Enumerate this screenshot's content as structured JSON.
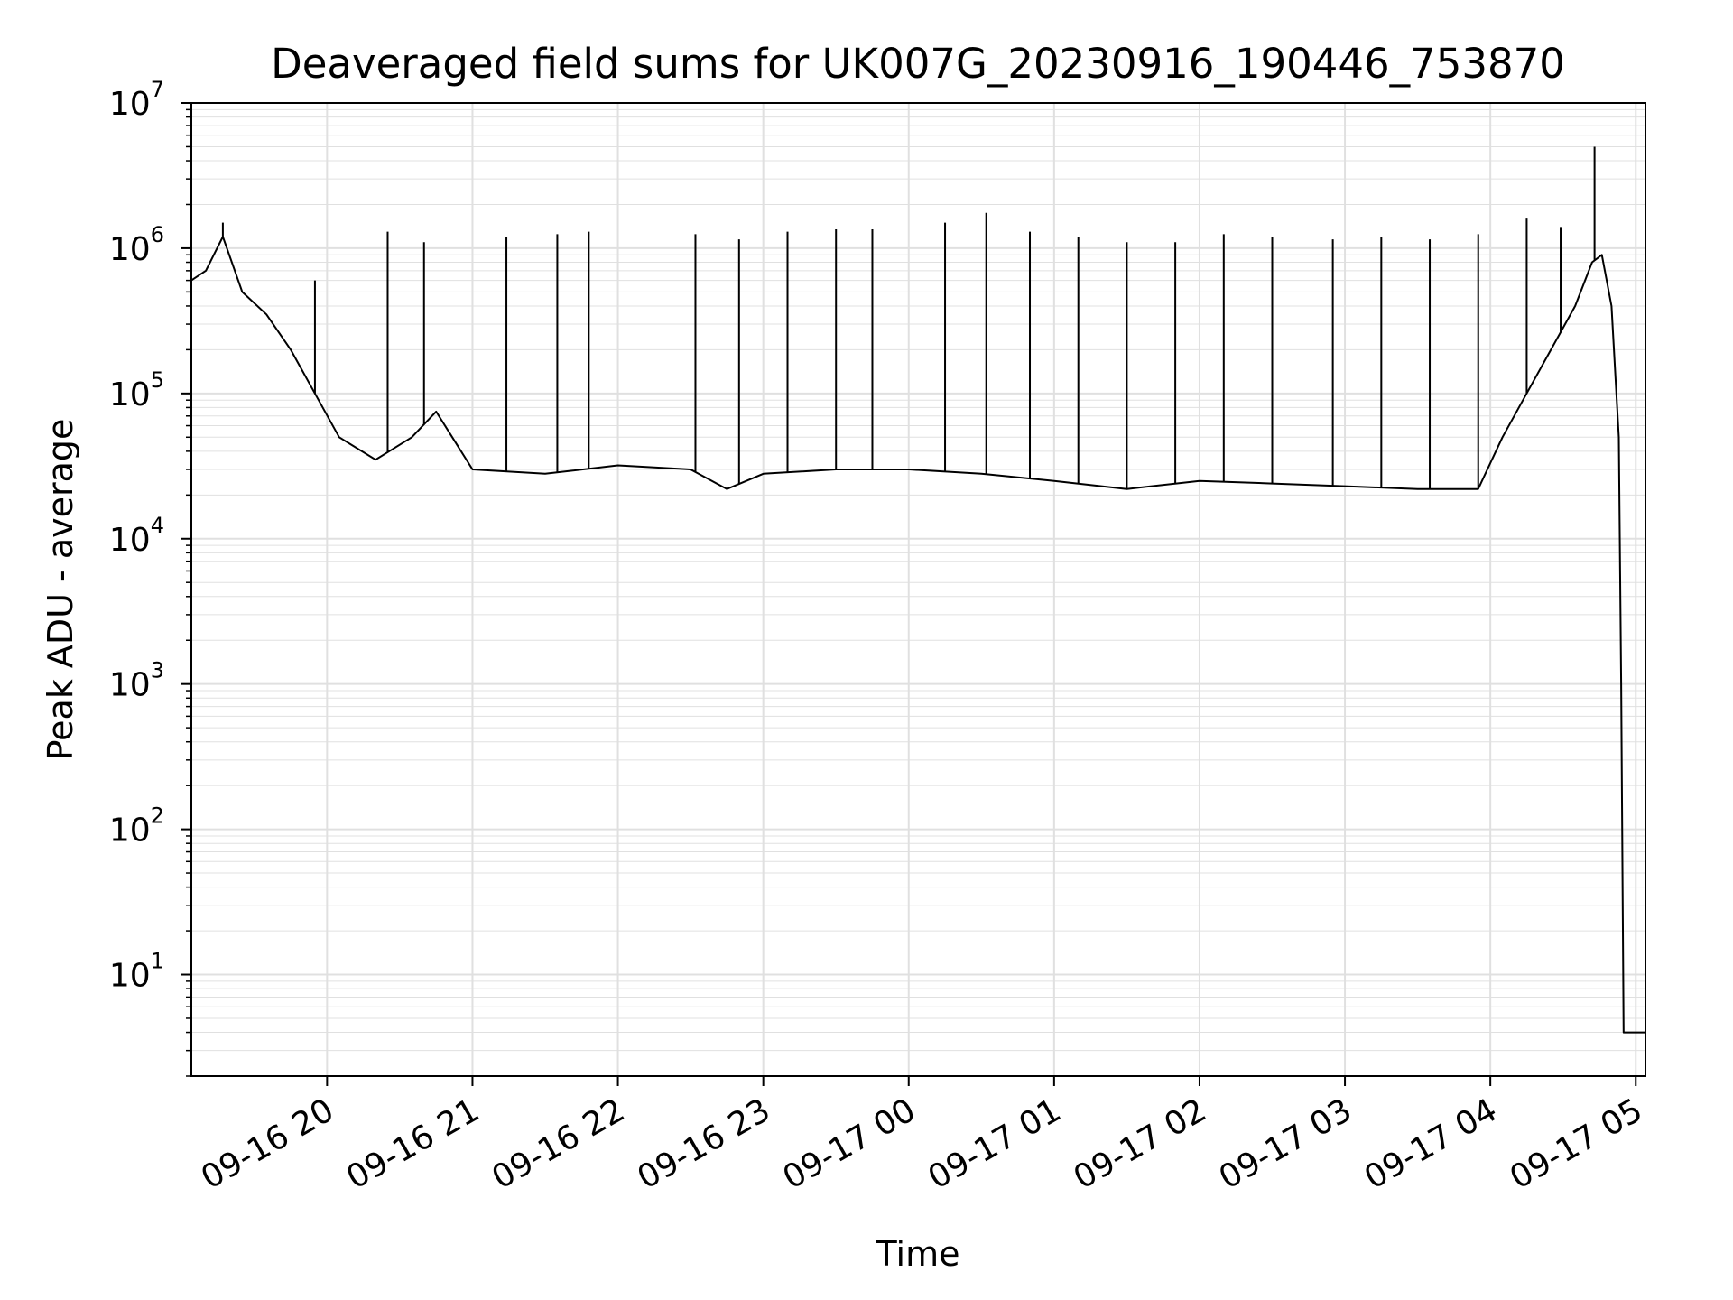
{
  "chart_data": {
    "type": "line",
    "title": "Deaveraged field sums for UK007G_20230916_190446_753870",
    "xlabel": "Time",
    "ylabel": "Peak ADU - average",
    "y_scale": "log",
    "ylim": [
      2,
      10000000
    ],
    "xlim": [
      "2023-09-16 19:04",
      "2023-09-17 05:04"
    ],
    "grid": true,
    "line_color": "#000000",
    "grid_color": "#e0e0e0",
    "x_ticks": [
      {
        "value": "2023-09-16 20:00",
        "label": "09-16 20"
      },
      {
        "value": "2023-09-16 21:00",
        "label": "09-16 21"
      },
      {
        "value": "2023-09-16 22:00",
        "label": "09-16 22"
      },
      {
        "value": "2023-09-16 23:00",
        "label": "09-16 23"
      },
      {
        "value": "2023-09-17 00:00",
        "label": "09-17 00"
      },
      {
        "value": "2023-09-17 01:00",
        "label": "09-17 01"
      },
      {
        "value": "2023-09-17 02:00",
        "label": "09-17 02"
      },
      {
        "value": "2023-09-17 03:00",
        "label": "09-17 03"
      },
      {
        "value": "2023-09-17 04:00",
        "label": "09-17 04"
      },
      {
        "value": "2023-09-17 05:00",
        "label": "09-17 05"
      }
    ],
    "y_ticks": [
      {
        "value": 10,
        "base": "10",
        "exp": "1"
      },
      {
        "value": 100,
        "base": "10",
        "exp": "2"
      },
      {
        "value": 1000,
        "base": "10",
        "exp": "3"
      },
      {
        "value": 10000,
        "base": "10",
        "exp": "4"
      },
      {
        "value": 100000,
        "base": "10",
        "exp": "5"
      },
      {
        "value": 1000000,
        "base": "10",
        "exp": "6"
      },
      {
        "value": 10000000,
        "base": "10",
        "exp": "7"
      }
    ],
    "series": [
      {
        "x": [
          "2023-09-16 19:04",
          "2023-09-16 19:10",
          "2023-09-16 19:17",
          "2023-09-16 19:25",
          "2023-09-16 19:35",
          "2023-09-16 19:45",
          "2023-09-16 19:55",
          "2023-09-16 20:05",
          "2023-09-16 20:20",
          "2023-09-16 20:35",
          "2023-09-16 20:45",
          "2023-09-16 21:00",
          "2023-09-16 21:30",
          "2023-09-16 22:00",
          "2023-09-16 22:30",
          "2023-09-16 22:45",
          "2023-09-16 23:00",
          "2023-09-16 23:30",
          "2023-09-17 00:00",
          "2023-09-17 00:30",
          "2023-09-17 01:00",
          "2023-09-17 01:30",
          "2023-09-17 02:00",
          "2023-09-17 02:30",
          "2023-09-17 03:00",
          "2023-09-17 03:30",
          "2023-09-17 03:55",
          "2023-09-17 04:05",
          "2023-09-17 04:15",
          "2023-09-17 04:25",
          "2023-09-17 04:35",
          "2023-09-17 04:42",
          "2023-09-17 04:46",
          "2023-09-17 04:50",
          "2023-09-17 04:53",
          "2023-09-17 04:54",
          "2023-09-17 04:55",
          "2023-09-17 05:04"
        ],
        "y": [
          600000,
          700000,
          1200000,
          500000,
          350000,
          200000,
          100000,
          50000,
          35000,
          50000,
          75000,
          30000,
          28000,
          32000,
          30000,
          22000,
          28000,
          30000,
          30000,
          28000,
          25000,
          22000,
          25000,
          24000,
          23000,
          22000,
          22000,
          50000,
          100000,
          200000,
          400000,
          800000,
          900000,
          400000,
          50000,
          1000,
          4,
          4
        ]
      }
    ],
    "spikes": [
      {
        "x": "2023-09-16 19:17",
        "y": 1500000
      },
      {
        "x": "2023-09-16 19:55",
        "y": 600000
      },
      {
        "x": "2023-09-16 20:25",
        "y": 1300000
      },
      {
        "x": "2023-09-16 20:40",
        "y": 1100000
      },
      {
        "x": "2023-09-16 21:14",
        "y": 1200000
      },
      {
        "x": "2023-09-16 21:35",
        "y": 1250000
      },
      {
        "x": "2023-09-16 21:48",
        "y": 1300000
      },
      {
        "x": "2023-09-16 22:32",
        "y": 1250000
      },
      {
        "x": "2023-09-16 22:50",
        "y": 1150000
      },
      {
        "x": "2023-09-16 23:10",
        "y": 1300000
      },
      {
        "x": "2023-09-16 23:30",
        "y": 1350000
      },
      {
        "x": "2023-09-16 23:45",
        "y": 1350000
      },
      {
        "x": "2023-09-17 00:15",
        "y": 1500000
      },
      {
        "x": "2023-09-17 00:32",
        "y": 1750000
      },
      {
        "x": "2023-09-17 00:50",
        "y": 1300000
      },
      {
        "x": "2023-09-17 01:10",
        "y": 1200000
      },
      {
        "x": "2023-09-17 01:30",
        "y": 1100000
      },
      {
        "x": "2023-09-17 01:50",
        "y": 1100000
      },
      {
        "x": "2023-09-17 02:10",
        "y": 1250000
      },
      {
        "x": "2023-09-17 02:30",
        "y": 1200000
      },
      {
        "x": "2023-09-17 02:55",
        "y": 1150000
      },
      {
        "x": "2023-09-17 03:15",
        "y": 1200000
      },
      {
        "x": "2023-09-17 03:35",
        "y": 1150000
      },
      {
        "x": "2023-09-17 03:55",
        "y": 1250000
      },
      {
        "x": "2023-09-17 04:15",
        "y": 1600000
      },
      {
        "x": "2023-09-17 04:29",
        "y": 1400000
      },
      {
        "x": "2023-09-17 04:43",
        "y": 5000000
      }
    ]
  }
}
